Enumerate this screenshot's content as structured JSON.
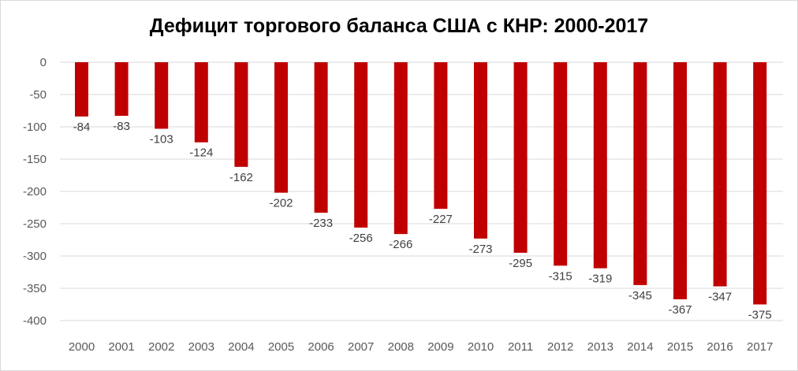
{
  "chart_data": {
    "type": "bar",
    "title": "Дефицит торгового баланса США с КНР: 2000-2017",
    "xlabel": "",
    "ylabel": "",
    "categories": [
      "2000",
      "2001",
      "2002",
      "2003",
      "2004",
      "2005",
      "2006",
      "2007",
      "2008",
      "2009",
      "2010",
      "2011",
      "2012",
      "2013",
      "2014",
      "2015",
      "2016",
      "2017"
    ],
    "series": [
      {
        "values": [
          -84,
          -83,
          -103,
          -124,
          -162,
          -202,
          -233,
          -256,
          -266,
          -227,
          -273,
          -295,
          -315,
          -319,
          -345,
          -367,
          -347,
          -375
        ],
        "color": "#c00000"
      }
    ],
    "data_labels": [
      "-84",
      "-83",
      "-103",
      "-124",
      "-162",
      "-202",
      "-233",
      "-256",
      "-266",
      "-227",
      "-273",
      "-295",
      "-315",
      "-319",
      "-345",
      "-367",
      "-347",
      "-375"
    ],
    "ylim": [
      -400,
      0
    ],
    "yticks": [
      "0",
      "-50",
      "-100",
      "-150",
      "-200",
      "-250",
      "-300",
      "-350",
      "-400"
    ],
    "ytick_values": [
      0,
      -50,
      -100,
      -150,
      -200,
      -250,
      -300,
      -350,
      -400
    ],
    "grid": true,
    "grid_color": "#d9d9d9",
    "legend": false
  }
}
